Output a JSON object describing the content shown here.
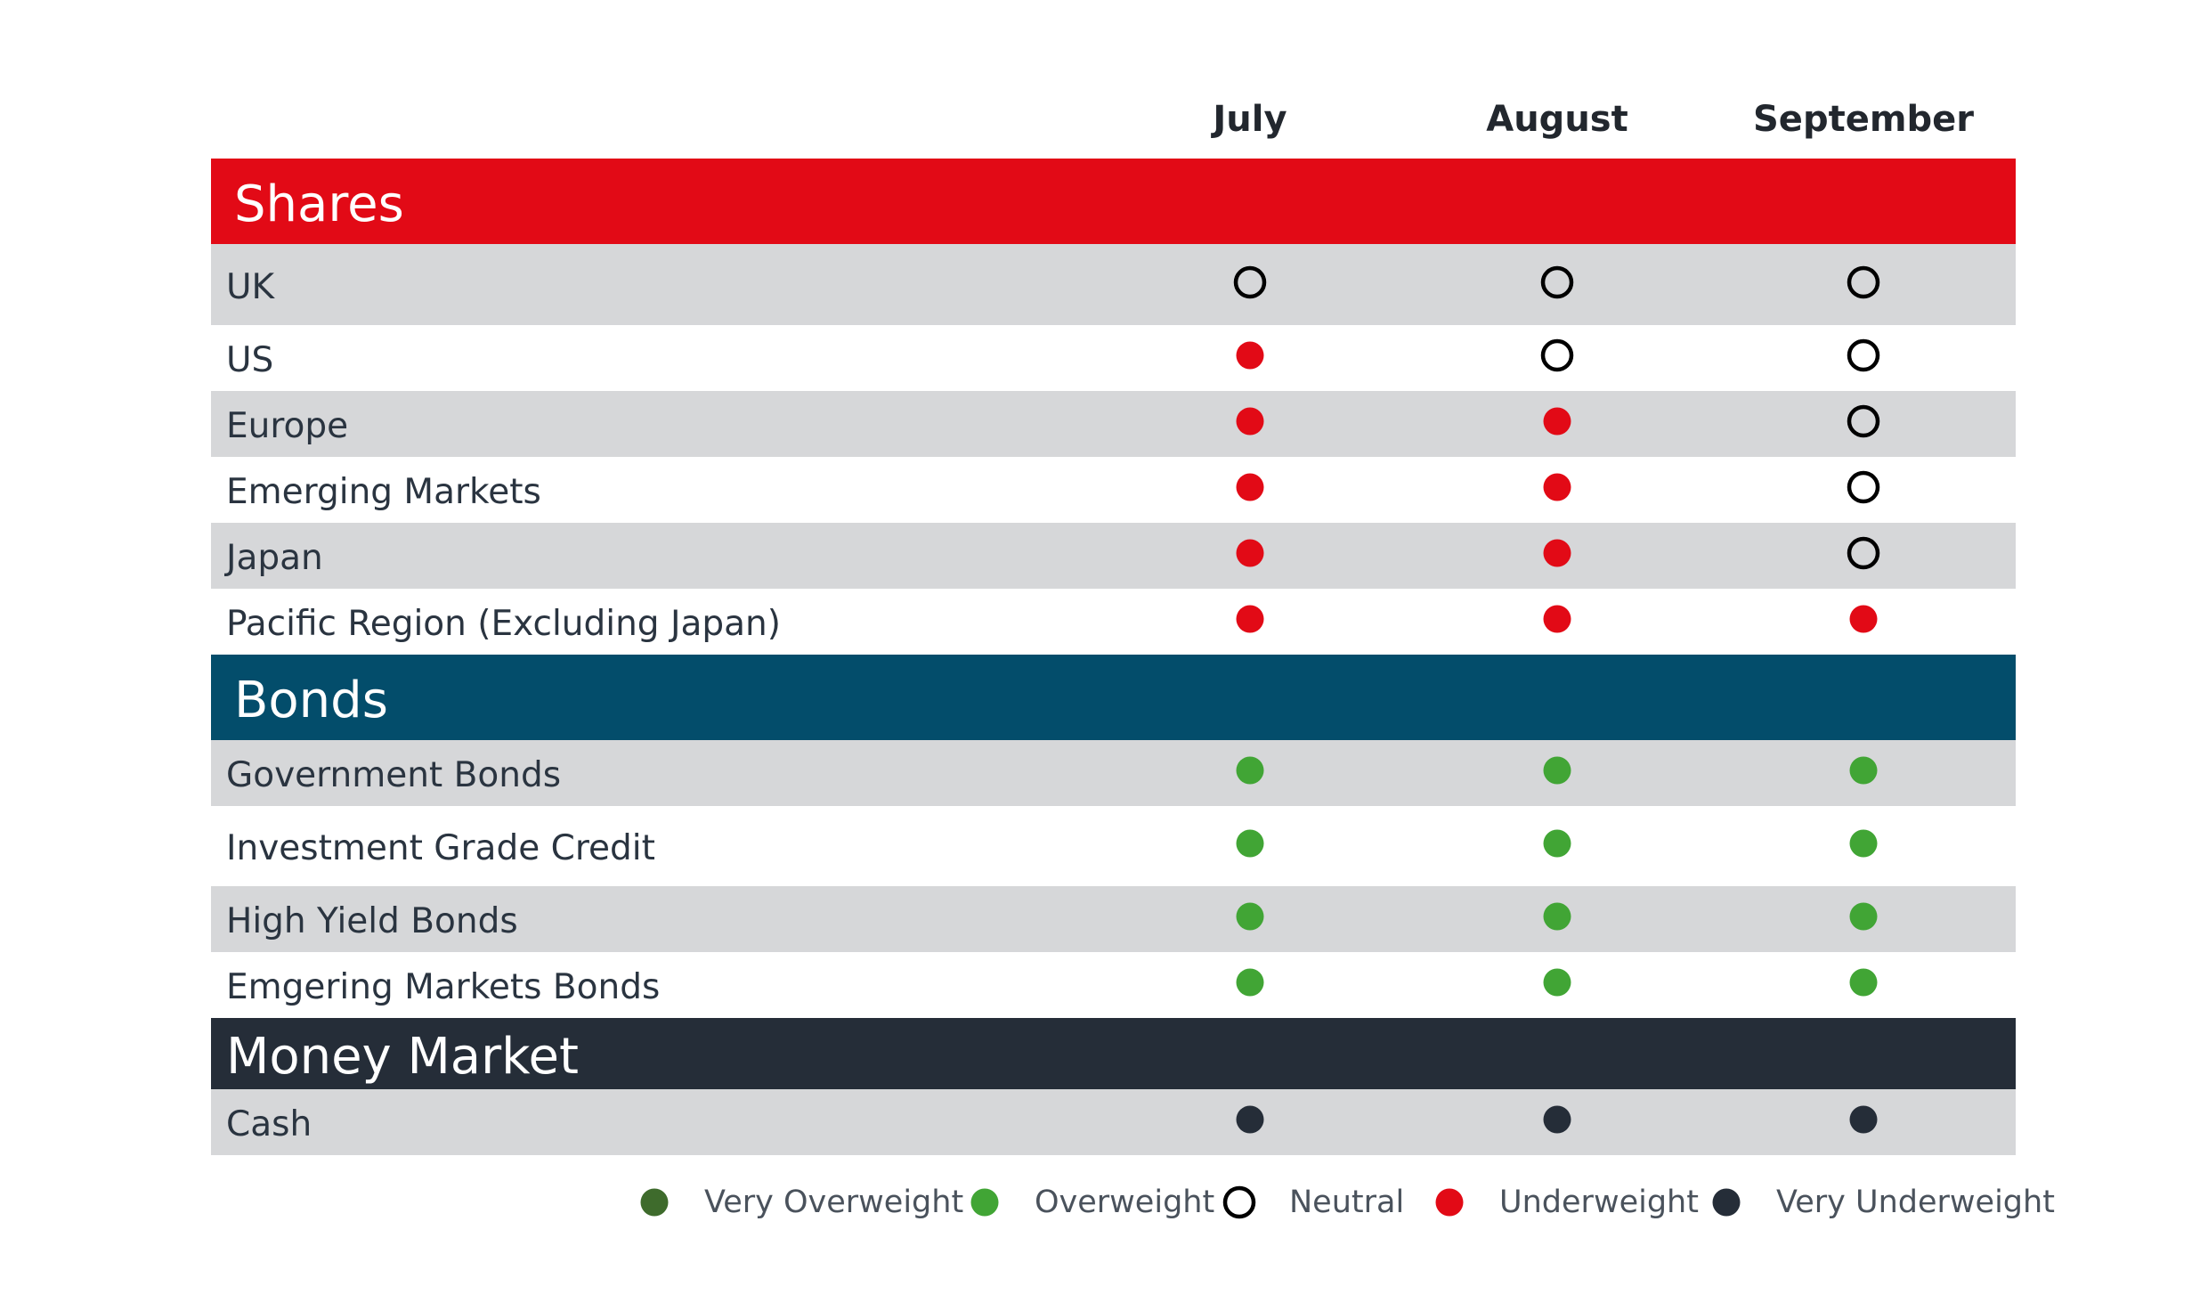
{
  "chart_data": {
    "type": "table",
    "columns": [
      "July",
      "August",
      "September"
    ],
    "sections": [
      {
        "title": "Shares",
        "color": "#e20a16",
        "rows": [
          {
            "label": "UK",
            "values": [
              "Neutral",
              "Neutral",
              "Neutral"
            ]
          },
          {
            "label": "US",
            "values": [
              "Underweight",
              "Neutral",
              "Neutral"
            ]
          },
          {
            "label": "Europe",
            "values": [
              "Underweight",
              "Underweight",
              "Neutral"
            ]
          },
          {
            "label": "Emerging Markets",
            "values": [
              "Underweight",
              "Underweight",
              "Neutral"
            ]
          },
          {
            "label": "Japan",
            "values": [
              "Underweight",
              "Underweight",
              "Neutral"
            ]
          },
          {
            "label": "Pacific Region (Excluding Japan)",
            "values": [
              "Underweight",
              "Underweight",
              "Underweight"
            ]
          }
        ]
      },
      {
        "title": "Bonds",
        "color": "#034d6b",
        "rows": [
          {
            "label": "Government Bonds",
            "values": [
              "Overweight",
              "Overweight",
              "Overweight"
            ]
          },
          {
            "label": "Investment Grade Credit",
            "values": [
              "Overweight",
              "Overweight",
              "Overweight"
            ]
          },
          {
            "label": "High Yield Bonds",
            "values": [
              "Overweight",
              "Overweight",
              "Overweight"
            ]
          },
          {
            "label": "Emgering Markets Bonds",
            "values": [
              "Overweight",
              "Overweight",
              "Overweight"
            ]
          }
        ]
      },
      {
        "title": "Money Market",
        "color": "#252d38",
        "rows": [
          {
            "label": "Cash",
            "values": [
              "Very Underweight",
              "Very Underweight",
              "Very Underweight"
            ]
          }
        ]
      }
    ],
    "legend": [
      {
        "label": "Very Overweight",
        "marker": "filled-circle",
        "color": "#3e6b2c"
      },
      {
        "label": "Overweight",
        "marker": "filled-circle",
        "color": "#41a535"
      },
      {
        "label": "Neutral",
        "marker": "hollow-circle",
        "color": "#000000"
      },
      {
        "label": "Underweight",
        "marker": "filled-circle",
        "color": "#e20a16"
      },
      {
        "label": "Very Underweight",
        "marker": "filled-circle",
        "color": "#252d38"
      }
    ],
    "row_shading": {
      "shaded": "#d6d7d9",
      "plain": "#ffffff"
    }
  }
}
